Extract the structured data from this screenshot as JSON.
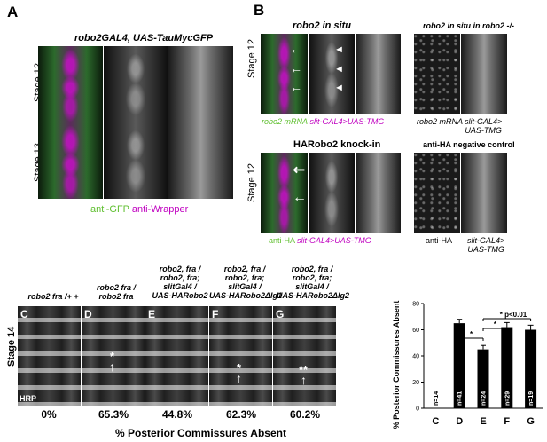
{
  "panel_A": {
    "letter": "A",
    "title": "robo2GAL4, UAS-TauMycGFP",
    "rows": [
      "Stage 12",
      "Stage 13"
    ],
    "legend_green": "anti-GFP",
    "legend_magenta": "anti-Wrapper"
  },
  "panel_B": {
    "letter": "B",
    "top_title": "robo2 in situ",
    "top_right_title": "robo2 in situ in robo2 -/-",
    "row_label": "Stage 12",
    "top_legend_green": "robo2 mRNA",
    "top_legend_magenta": "slit-GAL4>UAS-TMG",
    "top_right_label1": "robo2 mRNA",
    "top_right_label2": "slit-GAL4>",
    "top_right_label3": "UAS-TMG",
    "bottom_title": "HARobo2 knock-in",
    "bottom_right_title": "anti-HA negative control",
    "bottom_legend_green": "anti-HA",
    "bottom_legend_magenta": "slit-GAL4>UAS-TMG",
    "bottom_right_label1": "anti-HA",
    "bottom_right_label2": "slit-GAL4>",
    "bottom_right_label3": "UAS-TMG"
  },
  "panel_C_G": {
    "stage": "Stage 14",
    "hrp": "HRP",
    "panels": [
      {
        "letter": "C",
        "genotype": [
          "robo2 fra /+ +"
        ],
        "percent": "0%"
      },
      {
        "letter": "D",
        "genotype": [
          "robo2 fra /",
          "robo2 fra"
        ],
        "percent": "65.3%"
      },
      {
        "letter": "E",
        "genotype": [
          "robo2, fra /",
          "robo2, fra;",
          "slitGal4 /",
          "UAS-HARobo2"
        ],
        "percent": "44.8%"
      },
      {
        "letter": "F",
        "genotype": [
          "robo2, fra /",
          "robo2, fra;",
          "slitGal4 /",
          "UAS-HARobo2ΔIg1"
        ],
        "percent": "62.3%"
      },
      {
        "letter": "G",
        "genotype": [
          "robo2, fra /",
          "robo2, fra;",
          "slitGal4 /",
          "UAS-HARobo2ΔIg2"
        ],
        "percent": "60.2%"
      }
    ],
    "caption": "% Posterior Commissures Absent",
    "asterisk": "*",
    "double_asterisk": "**"
  },
  "chart_data": {
    "type": "bar",
    "categories": [
      "C",
      "D",
      "E",
      "F",
      "G"
    ],
    "values": [
      0,
      65,
      45,
      62,
      60
    ],
    "errors": [
      0,
      3,
      3,
      3.5,
      3.5
    ],
    "n_labels": [
      "n=14",
      "n=41",
      "n=24",
      "n=29",
      "n=19"
    ],
    "ylabel": "% Posterior Commissures Absent",
    "xlabel": "",
    "ylim": [
      0,
      80
    ],
    "yticks": [
      0,
      20,
      40,
      60,
      80
    ],
    "significance": [
      {
        "from": "D",
        "to": "E",
        "label": "*"
      },
      {
        "from": "E",
        "to": "F",
        "label": "*"
      },
      {
        "from": "E",
        "to": "G",
        "label": "* p<0.01"
      }
    ],
    "bar_color": "#000000"
  }
}
